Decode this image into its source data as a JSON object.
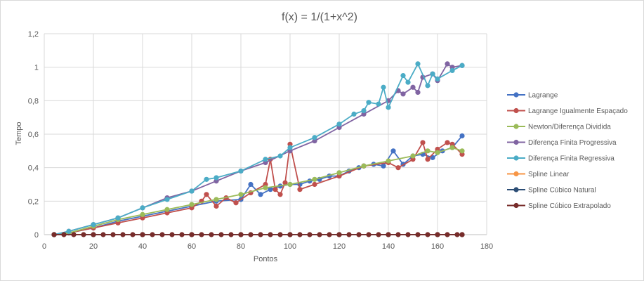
{
  "chart_data": {
    "type": "line",
    "title": "f(x) = 1/(1+x^2)",
    "xlabel": "Pontos",
    "ylabel": "Tempo",
    "xlim": [
      0,
      180
    ],
    "ylim": [
      0,
      1.2
    ],
    "xticks": [
      "0",
      "20",
      "40",
      "60",
      "80",
      "100",
      "120",
      "140",
      "160",
      "180"
    ],
    "yticks": [
      "0",
      "0,2",
      "0,4",
      "0,6",
      "0,8",
      "1",
      "1,2"
    ],
    "grid": true,
    "legend_position": "right",
    "series": [
      {
        "name": "Lagrange",
        "color": "#4472c4",
        "x": [
          4,
          10,
          20,
          30,
          40,
          50,
          60,
          70,
          80,
          84,
          88,
          92,
          96,
          100,
          104,
          108,
          112,
          116,
          120,
          124,
          128,
          130,
          134,
          138,
          142,
          146,
          150,
          154,
          158,
          162,
          166,
          170
        ],
        "y": [
          0,
          0.01,
          0.04,
          0.08,
          0.11,
          0.14,
          0.17,
          0.2,
          0.21,
          0.3,
          0.24,
          0.27,
          0.29,
          0.3,
          0.3,
          0.32,
          0.33,
          0.35,
          0.35,
          0.38,
          0.4,
          0.41,
          0.42,
          0.41,
          0.5,
          0.42,
          0.47,
          0.48,
          0.46,
          0.5,
          0.52,
          0.59
        ]
      },
      {
        "name": "Lagrange Igualmente Espaçado",
        "color": "#c0504d",
        "x": [
          4,
          10,
          20,
          30,
          40,
          50,
          60,
          64,
          66,
          70,
          74,
          78,
          84,
          90,
          92,
          94,
          96,
          98,
          100,
          104,
          110,
          120,
          130,
          140,
          144,
          150,
          154,
          156,
          160,
          164,
          166,
          170
        ],
        "y": [
          0,
          0.01,
          0.04,
          0.07,
          0.1,
          0.13,
          0.16,
          0.2,
          0.24,
          0.17,
          0.22,
          0.19,
          0.25,
          0.3,
          0.45,
          0.27,
          0.24,
          0.31,
          0.54,
          0.27,
          0.3,
          0.35,
          0.41,
          0.43,
          0.4,
          0.45,
          0.55,
          0.45,
          0.51,
          0.55,
          0.54,
          0.48
        ]
      },
      {
        "name": "Newton/Diferença Dividida",
        "color": "#9bbb59",
        "x": [
          4,
          10,
          20,
          30,
          40,
          50,
          60,
          70,
          80,
          90,
          100,
          110,
          120,
          130,
          140,
          150,
          156,
          160,
          166,
          170
        ],
        "y": [
          0,
          0.01,
          0.05,
          0.09,
          0.12,
          0.15,
          0.18,
          0.21,
          0.24,
          0.28,
          0.3,
          0.33,
          0.37,
          0.41,
          0.44,
          0.47,
          0.5,
          0.49,
          0.52,
          0.5
        ]
      },
      {
        "name": "Diferença Finita Progressiva",
        "color": "#8064a2",
        "x": [
          4,
          10,
          20,
          30,
          40,
          50,
          60,
          70,
          80,
          90,
          100,
          110,
          120,
          130,
          140,
          144,
          146,
          150,
          152,
          154,
          158,
          160,
          164,
          166,
          170
        ],
        "y": [
          0,
          0.02,
          0.06,
          0.1,
          0.16,
          0.22,
          0.26,
          0.32,
          0.38,
          0.43,
          0.5,
          0.56,
          0.64,
          0.72,
          0.8,
          0.86,
          0.84,
          0.88,
          0.85,
          0.94,
          0.96,
          0.92,
          1.02,
          1.0,
          1.01
        ]
      },
      {
        "name": "Diferença Finita Regressiva",
        "color": "#4bacc6",
        "x": [
          4,
          10,
          20,
          30,
          40,
          50,
          60,
          66,
          70,
          80,
          90,
          96,
          100,
          110,
          120,
          126,
          130,
          132,
          136,
          138,
          140,
          146,
          148,
          152,
          156,
          158,
          160,
          166,
          170
        ],
        "y": [
          0,
          0.02,
          0.06,
          0.1,
          0.16,
          0.21,
          0.26,
          0.33,
          0.34,
          0.38,
          0.45,
          0.47,
          0.52,
          0.58,
          0.66,
          0.72,
          0.74,
          0.79,
          0.78,
          0.88,
          0.76,
          0.95,
          0.91,
          1.02,
          0.89,
          0.96,
          0.93,
          0.98,
          1.01
        ]
      },
      {
        "name": "Spline Linear",
        "color": "#f79646",
        "x": [
          4,
          20,
          40,
          60,
          80,
          100,
          120,
          140,
          160,
          170
        ],
        "y": [
          0,
          0,
          0,
          0,
          0,
          0,
          0,
          0,
          0,
          0
        ]
      },
      {
        "name": "Spline Cúbico Natural",
        "color": "#2c4d75",
        "x": [
          4,
          20,
          40,
          60,
          80,
          100,
          120,
          140,
          160,
          170
        ],
        "y": [
          0,
          0,
          0,
          0,
          0,
          0,
          0,
          0,
          0,
          0
        ]
      },
      {
        "name": "Spline Cúbico Extrapolado",
        "color": "#772c2a",
        "x": [
          4,
          8,
          12,
          16,
          20,
          24,
          28,
          32,
          36,
          40,
          44,
          48,
          52,
          56,
          60,
          64,
          68,
          72,
          76,
          80,
          84,
          88,
          92,
          96,
          100,
          104,
          108,
          112,
          116,
          120,
          124,
          128,
          132,
          136,
          140,
          144,
          148,
          152,
          156,
          160,
          164,
          168,
          170
        ],
        "y": [
          0,
          0,
          0,
          0,
          0,
          0,
          0,
          0,
          0,
          0,
          0,
          0,
          0,
          0,
          0,
          0,
          0,
          0,
          0,
          0,
          0,
          0,
          0,
          0,
          0,
          0,
          0,
          0,
          0,
          0,
          0,
          0,
          0,
          0,
          0,
          0,
          0,
          0,
          0,
          0,
          0,
          0,
          0
        ]
      }
    ]
  }
}
